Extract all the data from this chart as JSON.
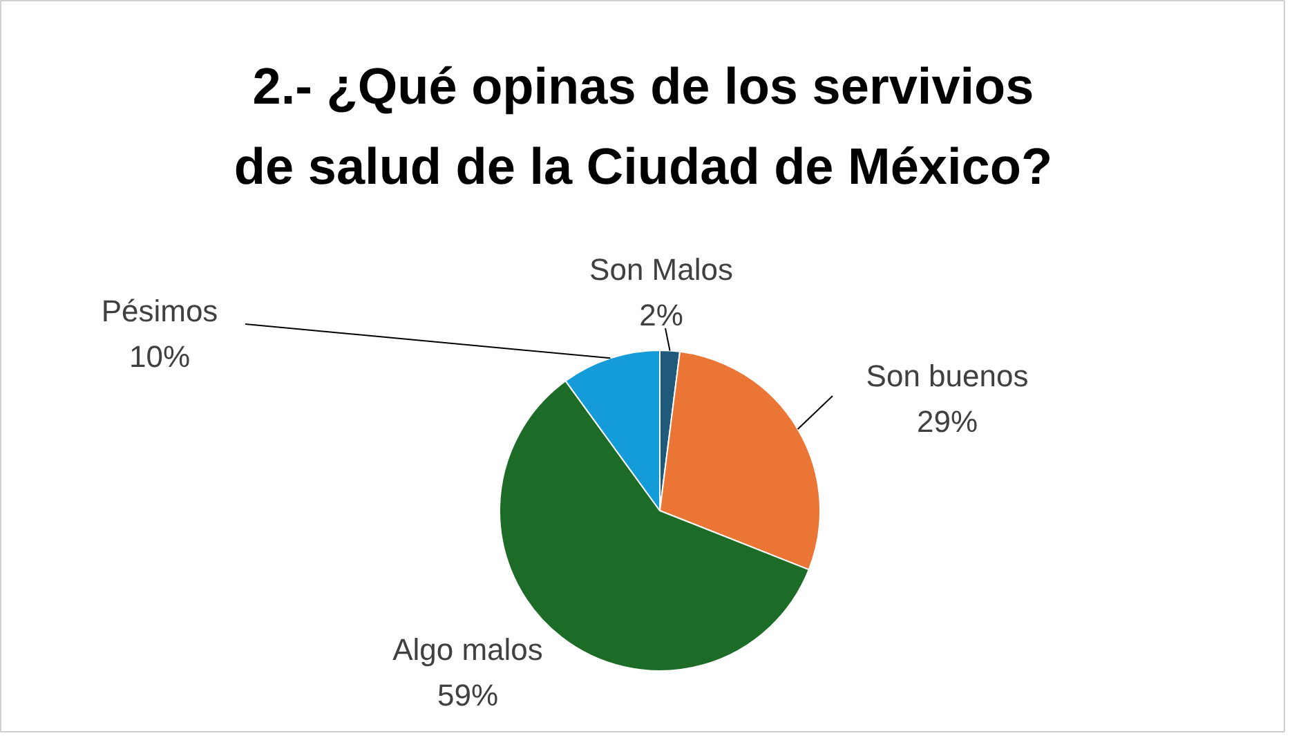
{
  "chart_data": {
    "type": "pie",
    "title": "2.- ¿Qué opinas de los servivios de salud de la Ciudad de México?",
    "categories": [
      "Son Malos",
      "Son buenos",
      "Algo malos",
      "Pésimos"
    ],
    "values": [
      2,
      29,
      59,
      10
    ],
    "colors": [
      "#1f5a7a",
      "#ea7535",
      "#1c6b27",
      "#139cd8"
    ],
    "value_labels": [
      "2%",
      "29%",
      "59%",
      "10%"
    ]
  }
}
